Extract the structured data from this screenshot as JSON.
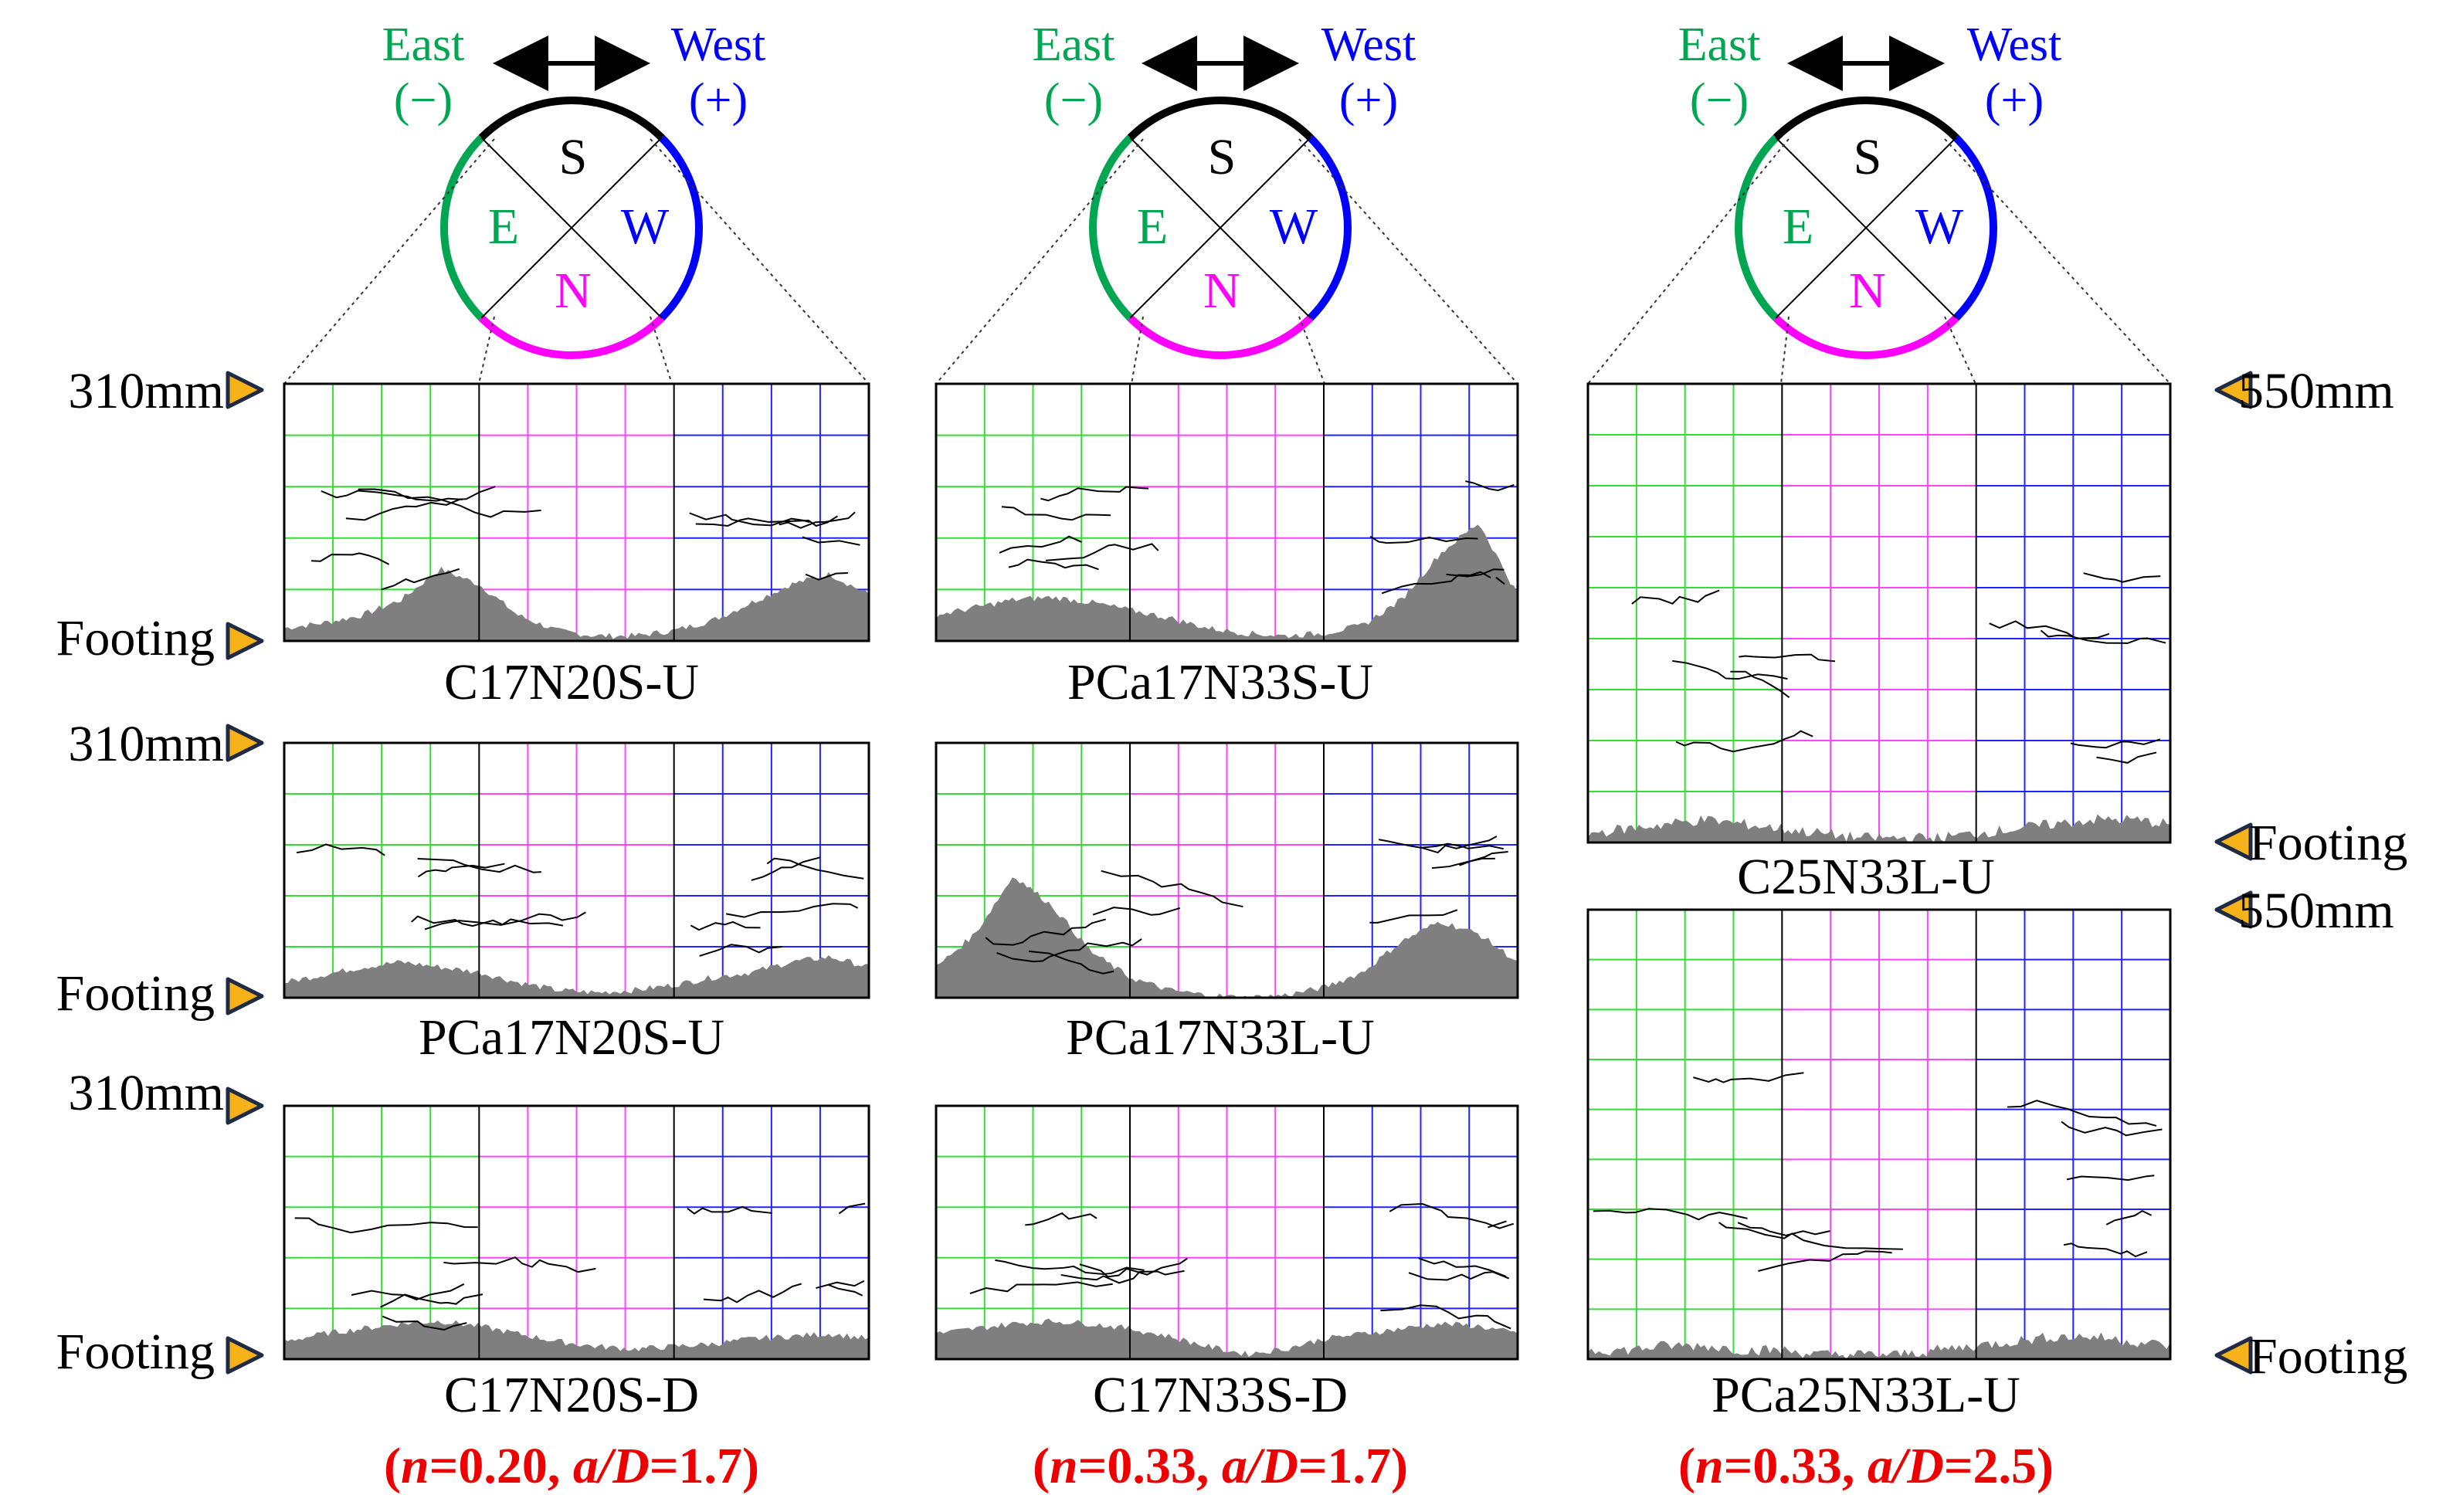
{
  "colors": {
    "east": "#00a651",
    "east_grid": "#33dd33",
    "north": "#ff00ff",
    "north_grid": "#ff44ff",
    "west": "#0000ff",
    "west_grid": "#2222ff",
    "south": "#000000",
    "marker_fill": "#f5b21a",
    "marker_stroke": "#1f2a44",
    "caption": "#ee0000",
    "damage": "#7f7f7f"
  },
  "compass": {
    "east_label": "East",
    "east_sign": "(−)",
    "west_label": "West",
    "west_sign": "(+)",
    "south": "S",
    "east": "E",
    "west": "W",
    "north": "N"
  },
  "markers": {
    "top_short": "310mm",
    "top_long": "550mm",
    "footing": "Footing"
  },
  "specimens": [
    {
      "name": "C17N20S-U",
      "grid_rows": 5,
      "damage_profile": [
        0.05,
        0.07,
        0.1,
        0.16,
        0.28,
        0.22,
        0.1,
        0.04,
        0.02,
        0.02,
        0.04,
        0.08,
        0.15,
        0.22,
        0.26,
        0.18
      ]
    },
    {
      "name": "PCa17N20S-U",
      "grid_rows": 5,
      "damage_profile": [
        0.06,
        0.09,
        0.12,
        0.14,
        0.12,
        0.1,
        0.06,
        0.03,
        0.02,
        0.03,
        0.05,
        0.08,
        0.1,
        0.14,
        0.16,
        0.12
      ]
    },
    {
      "name": "C17N20S-D",
      "grid_rows": 5,
      "damage_profile": [
        0.07,
        0.1,
        0.12,
        0.14,
        0.15,
        0.13,
        0.1,
        0.07,
        0.05,
        0.04,
        0.05,
        0.06,
        0.08,
        0.09,
        0.1,
        0.08
      ]
    },
    {
      "name": "PCa17N33S-U",
      "grid_rows": 5,
      "damage_profile": [
        0.1,
        0.13,
        0.16,
        0.17,
        0.15,
        0.12,
        0.09,
        0.05,
        0.03,
        0.02,
        0.03,
        0.06,
        0.16,
        0.34,
        0.46,
        0.18
      ]
    },
    {
      "name": "PCa17N33L-U",
      "grid_rows": 5,
      "damage_profile": [
        0.12,
        0.25,
        0.48,
        0.36,
        0.18,
        0.08,
        0.03,
        0.01,
        0.0,
        0.01,
        0.04,
        0.1,
        0.22,
        0.3,
        0.25,
        0.14
      ]
    },
    {
      "name": "C17N33S-D",
      "grid_rows": 5,
      "damage_profile": [
        0.1,
        0.12,
        0.14,
        0.15,
        0.14,
        0.12,
        0.09,
        0.05,
        0.02,
        0.04,
        0.08,
        0.1,
        0.12,
        0.14,
        0.13,
        0.1
      ]
    },
    {
      "name": "C25N33L-U",
      "grid_rows": 9,
      "damage_profile": [
        0.02,
        0.03,
        0.04,
        0.05,
        0.04,
        0.03,
        0.02,
        0.01,
        0.01,
        0.01,
        0.02,
        0.03,
        0.04,
        0.05,
        0.05,
        0.04
      ]
    },
    {
      "name": "PCa25N33L-U",
      "grid_rows": 9,
      "damage_profile": [
        0.02,
        0.02,
        0.03,
        0.03,
        0.02,
        0.02,
        0.01,
        0.01,
        0.01,
        0.02,
        0.03,
        0.04,
        0.05,
        0.05,
        0.04,
        0.03
      ]
    }
  ],
  "column_captions": [
    {
      "prefix": "(",
      "n_var": "n",
      "n_val": "=0.20, ",
      "ad_var": "a/D",
      "ad_val": "=1.7)"
    },
    {
      "prefix": "(",
      "n_var": "n",
      "n_val": "=0.33, ",
      "ad_var": "a/D",
      "ad_val": "=1.7)"
    },
    {
      "prefix": "(",
      "n_var": "n",
      "n_val": "=0.33, ",
      "ad_var": "a/D",
      "ad_val": "=2.5)"
    }
  ]
}
